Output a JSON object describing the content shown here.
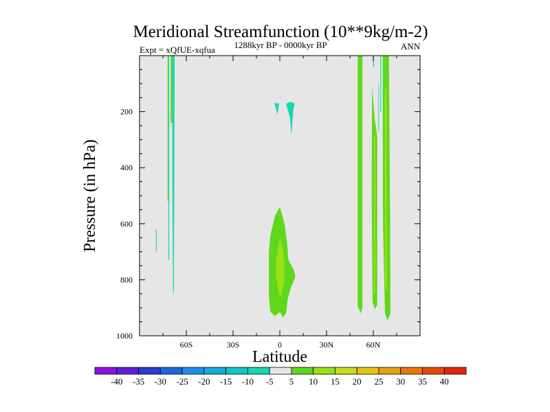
{
  "chart_data": {
    "type": "contour",
    "title": "Meridional Streamfunction (10**9kg/m-2)",
    "left_label": "Expt = xQfUE-xqfua",
    "center_label": "1288kyr BP - 0000kyr BP",
    "right_label": "ANN",
    "xlabel": "Latitude",
    "ylabel": "Pressure (in hPa)",
    "xlim": [
      -90,
      90
    ],
    "ylim": [
      1000,
      0
    ],
    "x_ticks": [
      {
        "value": -60,
        "label": "60S"
      },
      {
        "value": -30,
        "label": "30S"
      },
      {
        "value": 0,
        "label": "0"
      },
      {
        "value": 30,
        "label": "30N"
      },
      {
        "value": 60,
        "label": "60N"
      }
    ],
    "y_ticks": [
      {
        "value": 200,
        "label": "200"
      },
      {
        "value": 400,
        "label": "400"
      },
      {
        "value": 600,
        "label": "600"
      },
      {
        "value": 800,
        "label": "800"
      },
      {
        "value": 1000,
        "label": "1000"
      }
    ],
    "background_color": "#e6e6e6",
    "colorbar": {
      "levels": [
        -40,
        -35,
        -30,
        -25,
        -20,
        -15,
        -10,
        -5,
        5,
        10,
        15,
        20,
        25,
        30,
        35,
        40
      ],
      "labels": [
        "-40",
        "-35",
        "-30",
        "-25",
        "-20",
        "-15",
        "-10",
        "-5",
        "5",
        "10",
        "15",
        "20",
        "25",
        "30",
        "35",
        "40"
      ],
      "colors": [
        "#8a10e0",
        "#5d1ed6",
        "#2e3ad0",
        "#1f66dc",
        "#1b8ee6",
        "#14aadc",
        "#12c4cc",
        "#16d6b0",
        "#e6e6e6",
        "#5fd81c",
        "#9ae01a",
        "#c8dc1e",
        "#e6c212",
        "#e6a012",
        "#e6780c",
        "#e64c06",
        "#dc280a"
      ]
    },
    "regions": [
      {
        "name": "sh-band-a",
        "range": "-5 to -10",
        "color": "#16d6b0",
        "points": [
          [
            -71.5,
            0
          ],
          [
            -71,
            0
          ],
          [
            -71,
            730
          ],
          [
            -71.5,
            730
          ]
        ]
      },
      {
        "name": "sh-band-b",
        "range": "-5 to -10",
        "color": "#16d6b0",
        "points": [
          [
            -69,
            0
          ],
          [
            -67.5,
            0
          ],
          [
            -68,
            855
          ],
          [
            -68.5,
            835
          ],
          [
            -69,
            420
          ]
        ]
      },
      {
        "name": "sh-band-c",
        "range": "-5 to -10",
        "color": "#16d6b0",
        "points": [
          [
            -79.5,
            620
          ],
          [
            -79,
            620
          ],
          [
            -79,
            700
          ],
          [
            -79.5,
            700
          ]
        ]
      },
      {
        "name": "sh-green-a",
        "range": "5 to 10",
        "color": "#5fd81c",
        "points": [
          [
            -72,
            0
          ],
          [
            -71.5,
            0
          ],
          [
            -71.5,
            520
          ],
          [
            -72,
            520
          ]
        ]
      },
      {
        "name": "sh-green-b",
        "range": "5 to 10",
        "color": "#5fd81c",
        "points": [
          [
            -70,
            0
          ],
          [
            -69,
            0
          ],
          [
            -69,
            240
          ],
          [
            -70,
            240
          ]
        ]
      },
      {
        "name": "upper-neg-a",
        "range": "-5 to -10",
        "color": "#16d6b0",
        "points": [
          [
            -3.5,
            170
          ],
          [
            -0.5,
            170
          ],
          [
            -0.8,
            185
          ],
          [
            -1.5,
            210
          ],
          [
            -2.5,
            190
          ]
        ]
      },
      {
        "name": "upper-neg-b",
        "range": "-5 to -10",
        "color": "#16d6b0",
        "points": [
          [
            4,
            172
          ],
          [
            6.5,
            165
          ],
          [
            9.5,
            170
          ],
          [
            8.5,
            200
          ],
          [
            7.5,
            285
          ],
          [
            6.5,
            220
          ]
        ]
      },
      {
        "name": "eq-cell-outer",
        "range": "5 to 10",
        "color": "#5fd81c",
        "points": [
          [
            -3,
            570
          ],
          [
            0,
            540
          ],
          [
            3,
            600
          ],
          [
            4.5,
            660
          ],
          [
            5.5,
            730
          ],
          [
            9,
            765
          ],
          [
            10,
            790
          ],
          [
            7,
            830
          ],
          [
            5,
            870
          ],
          [
            4,
            920
          ],
          [
            2,
            935
          ],
          [
            0,
            915
          ],
          [
            -3,
            930
          ],
          [
            -6,
            915
          ],
          [
            -7,
            860
          ],
          [
            -7,
            780
          ],
          [
            -7,
            700
          ],
          [
            -6,
            640
          ]
        ]
      },
      {
        "name": "eq-cell-inner",
        "range": "10 to 15",
        "color": "#9ae01a",
        "points": [
          [
            0,
            650
          ],
          [
            2,
            690
          ],
          [
            3,
            740
          ],
          [
            3,
            800
          ],
          [
            1,
            850
          ],
          [
            0,
            860
          ],
          [
            -1,
            840
          ],
          [
            -2.5,
            780
          ],
          [
            -2,
            720
          ],
          [
            -1,
            680
          ]
        ]
      },
      {
        "name": "nh-band-1",
        "range": "5 to 10",
        "color": "#5fd81c",
        "points": [
          [
            50,
            0
          ],
          [
            53,
            0
          ],
          [
            53,
            900
          ],
          [
            52,
            920
          ],
          [
            50,
            895
          ]
        ]
      },
      {
        "name": "nh-band-2",
        "range": "5 to 10",
        "color": "#5fd81c",
        "points": [
          [
            59.2,
            110
          ],
          [
            60.8,
            220
          ],
          [
            62.5,
            290
          ],
          [
            62.5,
            890
          ],
          [
            61,
            905
          ],
          [
            59.5,
            880
          ],
          [
            59,
            500
          ]
        ]
      },
      {
        "name": "nh-band-2-core",
        "range": "10 to 15",
        "color": "#9ae01a",
        "points": [
          [
            60.3,
            290
          ],
          [
            61.3,
            290
          ],
          [
            61.3,
            850
          ],
          [
            60.3,
            850
          ]
        ]
      },
      {
        "name": "nh-band-3",
        "range": "5 to 10",
        "color": "#5fd81c",
        "points": [
          [
            66,
            0
          ],
          [
            70,
            0
          ],
          [
            70.8,
            620
          ],
          [
            71,
            920
          ],
          [
            69,
            945
          ],
          [
            67.5,
            920
          ],
          [
            66.2,
            600
          ]
        ]
      },
      {
        "name": "nh-band-3-core",
        "range": "10 to 15",
        "color": "#9ae01a",
        "points": [
          [
            67.4,
            120
          ],
          [
            68.5,
            110
          ],
          [
            68.8,
            850
          ],
          [
            67.5,
            820
          ]
        ]
      },
      {
        "name": "nh-neg-line-1",
        "range": "-5 to -10",
        "color": "#16d6b0",
        "points": [
          [
            59.8,
            0
          ],
          [
            60.4,
            0
          ],
          [
            60.4,
            40
          ],
          [
            59.8,
            40
          ]
        ]
      },
      {
        "name": "nh-neg-line-2",
        "range": "-5 to -10",
        "color": "#16d6b0",
        "points": [
          [
            64.5,
            0
          ],
          [
            65,
            0
          ],
          [
            65,
            200
          ],
          [
            64.5,
            200
          ]
        ]
      },
      {
        "name": "nh-neg-line-3",
        "range": "-5 to -10",
        "color": "#16d6b0",
        "points": [
          [
            63.2,
            100
          ],
          [
            63.6,
            100
          ],
          [
            63.6,
            270
          ],
          [
            63.2,
            270
          ]
        ]
      }
    ]
  }
}
